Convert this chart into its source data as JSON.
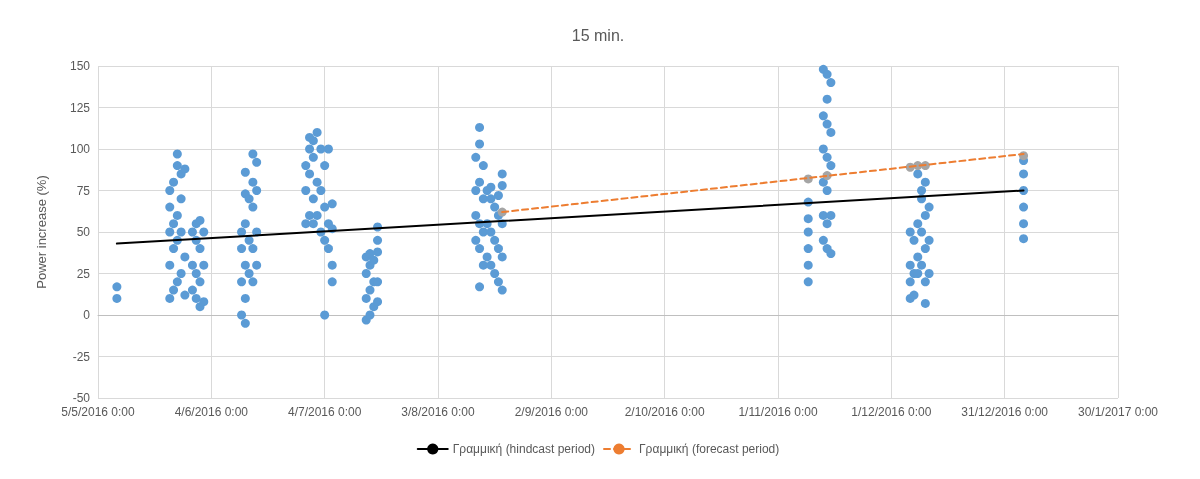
{
  "chart_data": {
    "type": "scatter",
    "title": "15 min.",
    "ylabel": "Power increase (%)",
    "xlim": [
      "2016-05-05",
      "2017-01-30"
    ],
    "xticks": [
      {
        "value": "2016-05-05",
        "label": "5/5/2016 0:00"
      },
      {
        "value": "2016-06-04",
        "label": "4/6/2016 0:00"
      },
      {
        "value": "2016-07-04",
        "label": "4/7/2016 0:00"
      },
      {
        "value": "2016-08-03",
        "label": "3/8/2016 0:00"
      },
      {
        "value": "2016-09-02",
        "label": "2/9/2016 0:00"
      },
      {
        "value": "2016-10-02",
        "label": "2/10/2016 0:00"
      },
      {
        "value": "2016-11-01",
        "label": "1/11/2016 0:00"
      },
      {
        "value": "2016-12-01",
        "label": "1/12/2016 0:00"
      },
      {
        "value": "2016-12-31",
        "label": "31/12/2016 0:00"
      },
      {
        "value": "2017-01-30",
        "label": "30/1/2017 0:00"
      }
    ],
    "ylim": [
      -50,
      150
    ],
    "yticks": [
      -50,
      -25,
      0,
      25,
      50,
      75,
      100,
      125,
      150
    ],
    "grid": true,
    "legend": "bottom",
    "series": [
      {
        "color": "#5b9bd5",
        "marker": "circle",
        "x": [
          "2016-05-10",
          "2016-05-10",
          "2016-05-24",
          "2016-05-24",
          "2016-05-24",
          "2016-05-24",
          "2016-05-24",
          "2016-05-25",
          "2016-05-25",
          "2016-05-25",
          "2016-05-25",
          "2016-05-26",
          "2016-05-26",
          "2016-05-26",
          "2016-05-26",
          "2016-05-26",
          "2016-05-27",
          "2016-05-27",
          "2016-05-27",
          "2016-05-27",
          "2016-05-28",
          "2016-05-28",
          "2016-05-28",
          "2016-05-30",
          "2016-05-30",
          "2016-05-30",
          "2016-05-31",
          "2016-05-31",
          "2016-05-31",
          "2016-05-31",
          "2016-06-01",
          "2016-06-01",
          "2016-06-01",
          "2016-06-01",
          "2016-06-02",
          "2016-06-02",
          "2016-06-02",
          "2016-06-12",
          "2016-06-12",
          "2016-06-12",
          "2016-06-12",
          "2016-06-13",
          "2016-06-13",
          "2016-06-13",
          "2016-06-13",
          "2016-06-13",
          "2016-06-13",
          "2016-06-14",
          "2016-06-14",
          "2016-06-14",
          "2016-06-15",
          "2016-06-15",
          "2016-06-15",
          "2016-06-15",
          "2016-06-15",
          "2016-06-16",
          "2016-06-16",
          "2016-06-16",
          "2016-06-16",
          "2016-06-29",
          "2016-06-29",
          "2016-06-29",
          "2016-06-30",
          "2016-06-30",
          "2016-06-30",
          "2016-06-30",
          "2016-07-01",
          "2016-07-01",
          "2016-07-01",
          "2016-07-01",
          "2016-07-02",
          "2016-07-02",
          "2016-07-02",
          "2016-07-03",
          "2016-07-03",
          "2016-07-03",
          "2016-07-04",
          "2016-07-04",
          "2016-07-04",
          "2016-07-04",
          "2016-07-05",
          "2016-07-05",
          "2016-07-05",
          "2016-07-06",
          "2016-07-06",
          "2016-07-06",
          "2016-07-06",
          "2016-07-15",
          "2016-07-15",
          "2016-07-15",
          "2016-07-15",
          "2016-07-16",
          "2016-07-16",
          "2016-07-16",
          "2016-07-16",
          "2016-07-17",
          "2016-07-17",
          "2016-07-17",
          "2016-07-18",
          "2016-07-18",
          "2016-07-18",
          "2016-07-18",
          "2016-07-18",
          "2016-08-13",
          "2016-08-13",
          "2016-08-13",
          "2016-08-13",
          "2016-08-14",
          "2016-08-14",
          "2016-08-14",
          "2016-08-14",
          "2016-08-14",
          "2016-08-14",
          "2016-08-15",
          "2016-08-15",
          "2016-08-15",
          "2016-08-15",
          "2016-08-16",
          "2016-08-16",
          "2016-08-16",
          "2016-08-17",
          "2016-08-17",
          "2016-08-17",
          "2016-08-17",
          "2016-08-18",
          "2016-08-18",
          "2016-08-18",
          "2016-08-19",
          "2016-08-19",
          "2016-08-19",
          "2016-08-19",
          "2016-08-20",
          "2016-08-20",
          "2016-08-20",
          "2016-08-20",
          "2016-08-20",
          "2016-11-09",
          "2016-11-09",
          "2016-11-09",
          "2016-11-09",
          "2016-11-09",
          "2016-11-09",
          "2016-11-13",
          "2016-11-13",
          "2016-11-13",
          "2016-11-13",
          "2016-11-13",
          "2016-11-13",
          "2016-11-14",
          "2016-11-14",
          "2016-11-14",
          "2016-11-14",
          "2016-11-14",
          "2016-11-14",
          "2016-11-14",
          "2016-11-15",
          "2016-11-15",
          "2016-11-15",
          "2016-11-15",
          "2016-11-15",
          "2016-12-06",
          "2016-12-06",
          "2016-12-06",
          "2016-12-06",
          "2016-12-07",
          "2016-12-07",
          "2016-12-07",
          "2016-12-08",
          "2016-12-08",
          "2016-12-08",
          "2016-12-08",
          "2016-12-09",
          "2016-12-09",
          "2016-12-09",
          "2016-12-09",
          "2016-12-10",
          "2016-12-10",
          "2016-12-10",
          "2016-12-10",
          "2016-12-10",
          "2016-12-11",
          "2016-12-11",
          "2016-12-11",
          "2017-01-05",
          "2017-01-05",
          "2017-01-05",
          "2017-01-05",
          "2017-01-05",
          "2017-01-05"
        ],
        "values": [
          17,
          10,
          10,
          30,
          50,
          65,
          75,
          15,
          40,
          55,
          80,
          20,
          45,
          60,
          90,
          97,
          25,
          50,
          70,
          85,
          12,
          35,
          88,
          15,
          30,
          50,
          10,
          25,
          45,
          55,
          5,
          20,
          40,
          57,
          8,
          30,
          50,
          0,
          20,
          40,
          50,
          -5,
          10,
          30,
          55,
          73,
          86,
          25,
          45,
          70,
          20,
          40,
          65,
          80,
          97,
          30,
          50,
          75,
          92,
          55,
          75,
          90,
          60,
          85,
          100,
          107,
          55,
          70,
          95,
          105,
          60,
          80,
          110,
          50,
          75,
          100,
          45,
          65,
          90,
          0,
          40,
          55,
          100,
          20,
          30,
          52,
          67,
          -3,
          10,
          25,
          35,
          0,
          15,
          30,
          37,
          5,
          20,
          33,
          8,
          20,
          38,
          45,
          53,
          45,
          60,
          75,
          95,
          17,
          40,
          55,
          80,
          103,
          113,
          30,
          50,
          70,
          90,
          35,
          55,
          75,
          30,
          50,
          70,
          77,
          25,
          45,
          65,
          20,
          40,
          60,
          72,
          15,
          35,
          55,
          78,
          85,
          20,
          30,
          40,
          50,
          58,
          68,
          45,
          60,
          80,
          100,
          120,
          148,
          40,
          55,
          75,
          95,
          115,
          130,
          145,
          37,
          60,
          90,
          110,
          140,
          10,
          20,
          30,
          50,
          12,
          25,
          45,
          25,
          35,
          55,
          85,
          30,
          50,
          70,
          75,
          7,
          20,
          40,
          60,
          80,
          25,
          45,
          65,
          46,
          55,
          65,
          75,
          85,
          93
        ]
      },
      {
        "color": "#a5a5a5",
        "marker": "circle",
        "x": [
          "2016-08-20",
          "2016-11-09",
          "2016-11-13",
          "2016-11-14",
          "2016-12-06",
          "2016-12-08",
          "2016-12-10",
          "2017-01-05"
        ],
        "values": [
          62,
          82,
          null,
          84,
          89,
          90,
          90,
          96
        ]
      },
      {
        "type": "line",
        "name": "Γραμμική (hindcast period)",
        "color": "#000000",
        "marker": "none",
        "line_style": "solid",
        "x": [
          "2016-05-10",
          "2017-01-05"
        ],
        "values": [
          43,
          75
        ]
      },
      {
        "type": "line",
        "name": "Γραμμική (forecast period)",
        "color": "#ed7d31",
        "marker": "none",
        "line_style": "dashed",
        "x": [
          "2016-08-20",
          "2017-01-05"
        ],
        "values": [
          62,
          97
        ]
      }
    ]
  }
}
